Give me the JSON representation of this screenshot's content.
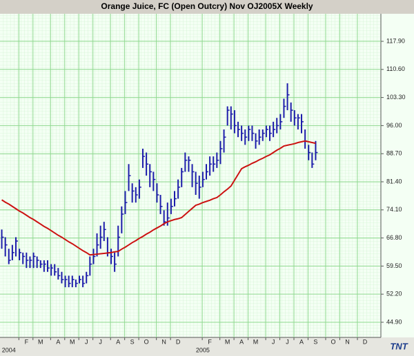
{
  "chart_data": {
    "type": "ohlc",
    "title": "Orange Juice, FC (Open Outcry) Nov OJ2005X Weekly",
    "categories": [
      null,
      null,
      null,
      null,
      null,
      null,
      null,
      "F",
      null,
      null,
      null,
      "M",
      null,
      null,
      null,
      null,
      "A",
      null,
      null,
      null,
      "M",
      null,
      null,
      null,
      "J",
      null,
      null,
      null,
      "J",
      null,
      null,
      null,
      null,
      "A",
      null,
      null,
      null,
      "S",
      null,
      null,
      null,
      "O",
      null,
      null,
      null,
      null,
      "N",
      null,
      null,
      null,
      "D",
      null,
      null,
      null,
      null,
      null,
      null,
      null,
      null,
      "F",
      null,
      null,
      null,
      null,
      "M",
      null,
      null,
      null,
      "A",
      null,
      null,
      null,
      "M",
      null,
      null,
      null,
      null,
      "J",
      null,
      null,
      null,
      "J",
      null,
      null,
      null,
      "A",
      null,
      null,
      null,
      "S",
      null,
      null,
      null,
      null,
      "O",
      null,
      null,
      null,
      "N",
      null,
      null,
      null,
      null,
      "D",
      null,
      null,
      null,
      null
    ],
    "year_labels": [
      null,
      null,
      "2004",
      null,
      null,
      null,
      null,
      null,
      null,
      null,
      null,
      null,
      null,
      null,
      null,
      null,
      null,
      null,
      null,
      null,
      null,
      null,
      null,
      null,
      null,
      null,
      null,
      null,
      null,
      null,
      null,
      null,
      null,
      null,
      null,
      null,
      null,
      null,
      null,
      null,
      null,
      null,
      null,
      null,
      null,
      null,
      null,
      null,
      null,
      null,
      null,
      null,
      null,
      null,
      null,
      null,
      null,
      "2005",
      null,
      null,
      null,
      null,
      null,
      null,
      null,
      null,
      null,
      null,
      null,
      null,
      null,
      null,
      null,
      null,
      null,
      null,
      null,
      null,
      null,
      null,
      null,
      null,
      null,
      null,
      null,
      null,
      null,
      null,
      null,
      null,
      null,
      null,
      null,
      null,
      null,
      null,
      null,
      null,
      null,
      null,
      null,
      null,
      null,
      null,
      null,
      null,
      null,
      null
    ],
    "high": [
      69,
      67,
      64,
      65,
      67,
      64,
      63,
      63,
      62,
      63,
      62,
      61,
      61,
      61,
      60,
      60,
      59,
      58,
      57,
      57,
      57,
      56,
      57,
      57,
      58,
      62,
      64,
      68,
      70,
      71,
      67,
      64,
      63,
      70,
      75,
      79,
      86,
      81,
      80,
      82,
      90,
      89,
      86,
      84,
      81,
      78,
      74,
      76,
      77,
      79,
      82,
      85,
      89,
      88,
      86,
      84,
      83,
      84,
      86,
      88,
      88,
      89,
      92,
      95,
      101,
      101,
      100,
      97,
      96,
      95,
      96,
      96,
      94,
      95,
      95,
      96,
      96,
      97,
      98,
      99,
      103,
      107,
      102,
      100,
      99,
      99,
      95,
      91,
      89,
      92,
      null,
      null,
      null,
      null,
      null,
      null,
      null,
      null,
      null,
      null,
      null,
      null,
      null,
      null,
      null,
      null,
      null,
      null
    ],
    "low": [
      64,
      62,
      60,
      61,
      62,
      61,
      60,
      59,
      59,
      59,
      59,
      59,
      58,
      58,
      57,
      57,
      56,
      55,
      54,
      54,
      54,
      54,
      55,
      54,
      55,
      57,
      60,
      62,
      64,
      66,
      62,
      60,
      58,
      62,
      68,
      73,
      79,
      76,
      76,
      77,
      85,
      83,
      80,
      79,
      76,
      73,
      70,
      70,
      73,
      75,
      77,
      80,
      84,
      84,
      80,
      78,
      77,
      80,
      82,
      83,
      84,
      85,
      86,
      89,
      96,
      95,
      94,
      93,
      92,
      91,
      92,
      92,
      90,
      91,
      92,
      93,
      92,
      93,
      94,
      95,
      98,
      100,
      97,
      96,
      95,
      94,
      90,
      87,
      85,
      87,
      null,
      null,
      null,
      null,
      null,
      null,
      null,
      null,
      null,
      null,
      null,
      null,
      null,
      null,
      null,
      null,
      null,
      null
    ],
    "close": [
      67,
      65,
      61,
      63,
      66,
      63,
      62,
      61,
      61,
      62,
      61,
      60,
      60,
      59,
      59,
      58,
      57,
      56,
      56,
      55,
      56,
      55,
      56,
      55,
      57,
      60,
      62,
      65,
      67,
      69,
      63,
      62,
      60,
      67,
      73,
      76,
      83,
      79,
      78,
      80,
      88,
      86,
      84,
      82,
      78,
      75,
      71,
      72,
      75,
      77,
      80,
      84,
      87,
      87,
      84,
      81,
      80,
      82,
      84,
      86,
      86,
      87,
      90,
      93,
      100,
      99,
      96,
      95,
      94,
      93,
      95,
      94,
      92,
      93,
      94,
      95,
      94,
      95,
      96,
      97,
      101,
      104,
      100,
      98,
      98,
      97,
      92,
      89,
      86,
      89,
      null,
      null,
      null,
      null,
      null,
      null,
      null,
      null,
      null,
      null,
      null,
      null,
      null,
      null,
      null,
      null,
      null,
      null
    ],
    "ma": [
      76.7,
      76.1,
      75.6,
      75.0,
      74.4,
      73.8,
      73.3,
      72.7,
      72.1,
      71.6,
      71.0,
      70.4,
      69.8,
      69.3,
      68.7,
      68.1,
      67.5,
      67.0,
      66.4,
      65.8,
      65.3,
      64.7,
      64.1,
      63.5,
      63.0,
      62.4,
      62.5,
      62.6,
      62.7,
      62.8,
      62.9,
      63.0,
      63.2,
      63.3,
      63.9,
      64.4,
      65.0,
      65.6,
      66.1,
      66.7,
      67.2,
      67.8,
      68.3,
      68.9,
      69.4,
      69.9,
      70.5,
      71.0,
      71.3,
      71.6,
      71.8,
      72.1,
      72.9,
      73.7,
      74.5,
      75.3,
      75.6,
      76.0,
      76.3,
      76.6,
      77.0,
      77.3,
      78.0,
      78.8,
      79.5,
      80.3,
      81.8,
      83.3,
      84.8,
      85.3,
      85.7,
      86.2,
      86.6,
      87.1,
      87.5,
      88.0,
      88.4,
      89.0,
      89.6,
      90.1,
      90.7,
      90.9,
      91.1,
      91.3,
      91.6,
      91.8,
      92.0,
      91.8,
      91.6,
      91.4,
      null,
      null,
      null,
      null,
      null,
      null,
      null,
      null,
      null,
      null,
      null,
      null,
      null,
      null,
      null,
      null,
      null,
      null
    ],
    "bar_color": "#1c1caa",
    "line_color": "#cc1111",
    "ylim": [
      40.96,
      125.06
    ],
    "yticks": [
      {
        "value": 44.9,
        "label": "44.90"
      },
      {
        "value": 52.2,
        "label": "52.20"
      },
      {
        "value": 59.5,
        "label": "59.50"
      },
      {
        "value": 66.8,
        "label": "66.80"
      },
      {
        "value": 74.1,
        "label": "74.10"
      },
      {
        "value": 81.4,
        "label": "81.40"
      },
      {
        "value": 88.7,
        "label": "88.70"
      },
      {
        "value": 96,
        "label": "96.00"
      },
      {
        "value": 103.3,
        "label": "103.30"
      },
      {
        "value": 110.6,
        "label": "110.60"
      },
      {
        "value": 117.9,
        "label": "117.90"
      }
    ],
    "grid": true,
    "logo": "TNT"
  }
}
